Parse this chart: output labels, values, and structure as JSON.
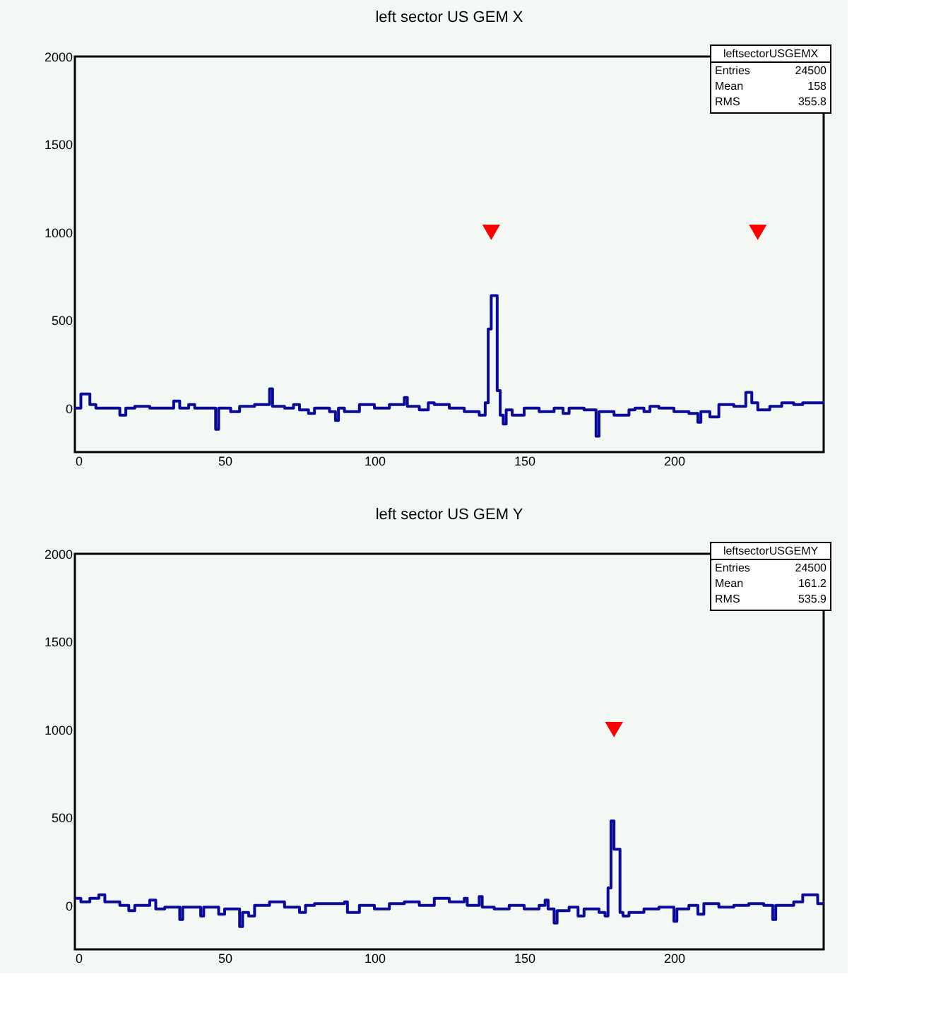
{
  "chart_data": [
    {
      "type": "step",
      "title": "left sector US GEM X",
      "xlim": [
        0,
        250
      ],
      "ylim": [
        -250,
        2000
      ],
      "xticks": [
        0,
        50,
        100,
        150,
        200
      ],
      "yticks": [
        0,
        500,
        1000,
        1500,
        2000
      ],
      "grid": false,
      "line_style": "solid",
      "annotations": [
        "leftsectorUSGEMX",
        "Entries",
        "24500",
        "Mean",
        "158",
        "RMS",
        "355.8"
      ],
      "series": [
        {
          "color": "#0a0a9a",
          "x": [
            0,
            2,
            5,
            7,
            15,
            17,
            20,
            25,
            33,
            35,
            38,
            40,
            47,
            48,
            52,
            55,
            60,
            65,
            66,
            70,
            73,
            75,
            78,
            80,
            85,
            87,
            88,
            90,
            95,
            100,
            105,
            110,
            111,
            115,
            118,
            120,
            125,
            130,
            135,
            137,
            138,
            139,
            141,
            142,
            143,
            144,
            146,
            150,
            155,
            160,
            163,
            165,
            170,
            174,
            175,
            180,
            185,
            187,
            190,
            192,
            195,
            200,
            205,
            208,
            209,
            212,
            215,
            220,
            224,
            226,
            228,
            232,
            236,
            240,
            243,
            250
          ],
          "values": [
            0,
            80,
            20,
            0,
            -40,
            0,
            10,
            0,
            40,
            0,
            20,
            0,
            -120,
            0,
            -20,
            10,
            20,
            110,
            10,
            0,
            20,
            -10,
            -30,
            0,
            -20,
            -70,
            0,
            -20,
            20,
            0,
            20,
            60,
            10,
            -10,
            30,
            20,
            0,
            -20,
            -40,
            30,
            450,
            640,
            100,
            -40,
            -90,
            -10,
            -40,
            0,
            -20,
            0,
            -30,
            0,
            -10,
            -160,
            -20,
            -40,
            -10,
            0,
            -20,
            10,
            0,
            -20,
            -30,
            -80,
            -20,
            -50,
            20,
            10,
            90,
            30,
            -10,
            10,
            30,
            20,
            30,
            30
          ]
        },
        {
          "type": "scatter",
          "color": "#ff0000",
          "marker": "triangle",
          "x": [
            139,
            228
          ],
          "values": [
            1000,
            1000
          ]
        }
      ]
    },
    {
      "type": "step",
      "title": "left sector US GEM Y",
      "xlim": [
        0,
        250
      ],
      "ylim": [
        -250,
        2000
      ],
      "xticks": [
        0,
        50,
        100,
        150,
        200
      ],
      "yticks": [
        0,
        500,
        1000,
        1500,
        2000
      ],
      "grid": false,
      "line_style": "solid",
      "annotations": [
        "leftsectorUSGEMY",
        "Entries",
        "24500",
        "Mean",
        "161.2",
        "RMS",
        "535.9"
      ],
      "series": [
        {
          "color": "#0a0a9a",
          "x": [
            0,
            2,
            5,
            8,
            10,
            15,
            18,
            20,
            25,
            27,
            30,
            35,
            36,
            42,
            43,
            48,
            50,
            55,
            56,
            58,
            60,
            65,
            70,
            75,
            77,
            80,
            90,
            91,
            95,
            100,
            105,
            110,
            115,
            120,
            125,
            130,
            131,
            135,
            136,
            140,
            145,
            150,
            155,
            157,
            158,
            160,
            161,
            165,
            168,
            170,
            175,
            177,
            178,
            179,
            180,
            182,
            183,
            185,
            190,
            195,
            200,
            201,
            205,
            208,
            210,
            215,
            220,
            225,
            230,
            233,
            234,
            240,
            243,
            248,
            250
          ],
          "values": [
            40,
            20,
            40,
            60,
            20,
            0,
            -30,
            0,
            30,
            -20,
            -10,
            -80,
            -10,
            -60,
            -10,
            -50,
            -20,
            -120,
            -40,
            -60,
            0,
            20,
            -10,
            -40,
            0,
            10,
            20,
            -40,
            0,
            -20,
            10,
            20,
            0,
            40,
            20,
            40,
            0,
            50,
            -10,
            -20,
            0,
            -20,
            0,
            30,
            -20,
            -100,
            -30,
            -10,
            -60,
            -20,
            -40,
            -60,
            100,
            480,
            320,
            -40,
            -60,
            -40,
            -20,
            -10,
            -90,
            -20,
            0,
            -50,
            10,
            -10,
            0,
            10,
            0,
            -80,
            0,
            20,
            60,
            10,
            10
          ]
        },
        {
          "type": "scatter",
          "color": "#ff0000",
          "marker": "triangle",
          "x": [
            180
          ],
          "values": [
            1000
          ]
        }
      ]
    }
  ]
}
